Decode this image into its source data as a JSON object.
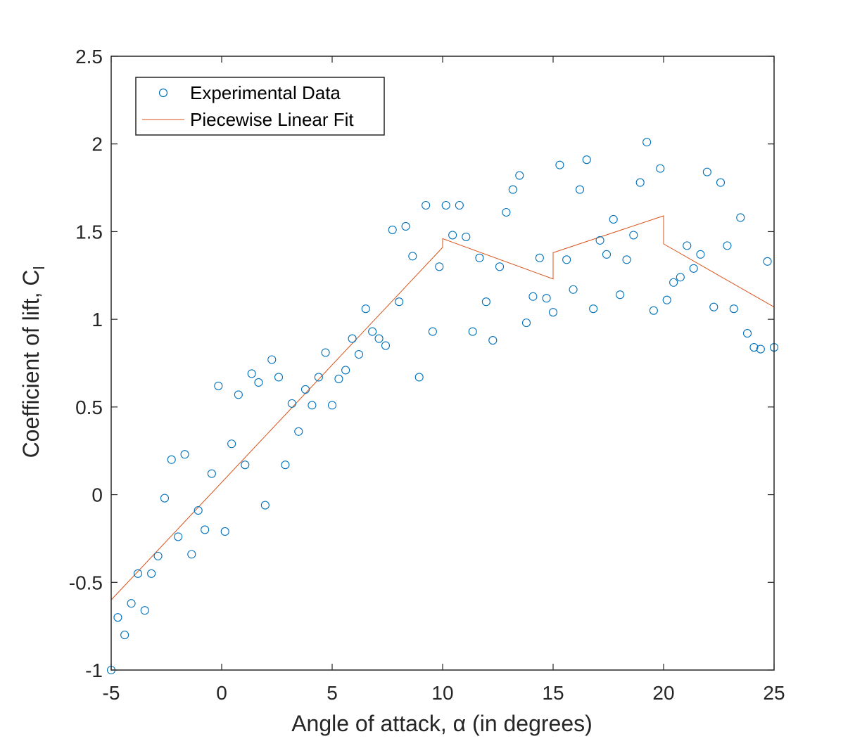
{
  "chart_data": {
    "type": "scatter",
    "xlabel": "Angle of attack, α (in degrees)",
    "ylabel": "Coefficient of lift, C",
    "ylabel_subscript": "l",
    "xlim": [
      -5,
      25
    ],
    "ylim": [
      -1,
      2.5
    ],
    "xticks": [
      -5,
      0,
      5,
      10,
      15,
      20,
      25
    ],
    "yticks": [
      -1,
      -0.5,
      0,
      0.5,
      1,
      1.5,
      2,
      2.5
    ],
    "xtick_labels": [
      "-5",
      "0",
      "5",
      "10",
      "15",
      "20",
      "25"
    ],
    "ytick_labels": [
      "-1",
      "-0.5",
      "0",
      "0.5",
      "1",
      "1.5",
      "2",
      "2.5"
    ],
    "grid": false,
    "legend_position": "top-left",
    "series": [
      {
        "name": "Experimental Data",
        "type": "scatter",
        "marker": "open-circle",
        "color": "#0072BD",
        "points": [
          [
            -5.0,
            -1.0
          ],
          [
            -4.7,
            -0.7
          ],
          [
            -4.39,
            -0.8
          ],
          [
            -4.09,
            -0.62
          ],
          [
            -3.79,
            -0.45
          ],
          [
            -3.48,
            -0.66
          ],
          [
            -3.18,
            -0.45
          ],
          [
            -2.88,
            -0.35
          ],
          [
            -2.58,
            -0.02
          ],
          [
            -2.27,
            0.2
          ],
          [
            -1.97,
            -0.24
          ],
          [
            -1.67,
            0.23
          ],
          [
            -1.36,
            -0.34
          ],
          [
            -1.06,
            -0.09
          ],
          [
            -0.76,
            -0.2
          ],
          [
            -0.45,
            0.12
          ],
          [
            -0.15,
            0.62
          ],
          [
            0.15,
            -0.21
          ],
          [
            0.45,
            0.29
          ],
          [
            0.76,
            0.57
          ],
          [
            1.06,
            0.17
          ],
          [
            1.36,
            0.69
          ],
          [
            1.67,
            0.64
          ],
          [
            1.97,
            -0.06
          ],
          [
            2.27,
            0.77
          ],
          [
            2.58,
            0.67
          ],
          [
            2.88,
            0.17
          ],
          [
            3.18,
            0.52
          ],
          [
            3.48,
            0.36
          ],
          [
            3.79,
            0.6
          ],
          [
            4.09,
            0.51
          ],
          [
            4.39,
            0.67
          ],
          [
            4.7,
            0.81
          ],
          [
            5.0,
            0.51
          ],
          [
            5.3,
            0.66
          ],
          [
            5.61,
            0.71
          ],
          [
            5.91,
            0.89
          ],
          [
            6.21,
            0.8
          ],
          [
            6.52,
            1.06
          ],
          [
            6.82,
            0.93
          ],
          [
            7.12,
            0.89
          ],
          [
            7.42,
            0.85
          ],
          [
            7.73,
            1.51
          ],
          [
            8.03,
            1.1
          ],
          [
            8.33,
            1.53
          ],
          [
            8.64,
            1.36
          ],
          [
            8.94,
            0.67
          ],
          [
            9.24,
            1.65
          ],
          [
            9.55,
            0.93
          ],
          [
            9.85,
            1.3
          ],
          [
            10.15,
            1.65
          ],
          [
            10.45,
            1.48
          ],
          [
            10.76,
            1.65
          ],
          [
            11.06,
            1.47
          ],
          [
            11.36,
            0.93
          ],
          [
            11.67,
            1.35
          ],
          [
            11.97,
            1.1
          ],
          [
            12.27,
            0.88
          ],
          [
            12.58,
            1.3
          ],
          [
            12.88,
            1.61
          ],
          [
            13.18,
            1.74
          ],
          [
            13.48,
            1.82
          ],
          [
            13.79,
            0.98
          ],
          [
            14.09,
            1.13
          ],
          [
            14.39,
            1.35
          ],
          [
            14.7,
            1.12
          ],
          [
            15.0,
            1.04
          ],
          [
            15.3,
            1.88
          ],
          [
            15.61,
            1.34
          ],
          [
            15.91,
            1.17
          ],
          [
            16.21,
            1.74
          ],
          [
            16.52,
            1.91
          ],
          [
            16.82,
            1.06
          ],
          [
            17.12,
            1.45
          ],
          [
            17.42,
            1.37
          ],
          [
            17.73,
            1.57
          ],
          [
            18.03,
            1.14
          ],
          [
            18.33,
            1.34
          ],
          [
            18.64,
            1.48
          ],
          [
            18.94,
            1.78
          ],
          [
            19.24,
            2.01
          ],
          [
            19.55,
            1.05
          ],
          [
            19.85,
            1.86
          ],
          [
            20.15,
            1.11
          ],
          [
            20.45,
            1.21
          ],
          [
            20.76,
            1.24
          ],
          [
            21.06,
            1.42
          ],
          [
            21.36,
            1.29
          ],
          [
            21.67,
            1.37
          ],
          [
            21.97,
            1.84
          ],
          [
            22.27,
            1.07
          ],
          [
            22.58,
            1.78
          ],
          [
            22.88,
            1.42
          ],
          [
            23.18,
            1.06
          ],
          [
            23.48,
            1.58
          ],
          [
            23.79,
            0.92
          ],
          [
            24.09,
            0.84
          ],
          [
            24.39,
            0.83
          ],
          [
            24.7,
            1.33
          ],
          [
            25.0,
            0.84
          ]
        ]
      },
      {
        "name": "Piecewise Linear Fit",
        "type": "line",
        "color": "#D95319",
        "segments": [
          [
            [
              -5,
              -0.6
            ],
            [
              10,
              1.41
            ]
          ],
          [
            [
              10,
              1.46
            ],
            [
              15,
              1.23
            ]
          ],
          [
            [
              15,
              1.38
            ],
            [
              20,
              1.59
            ]
          ],
          [
            [
              20,
              1.43
            ],
            [
              25,
              1.07
            ]
          ]
        ]
      }
    ]
  }
}
